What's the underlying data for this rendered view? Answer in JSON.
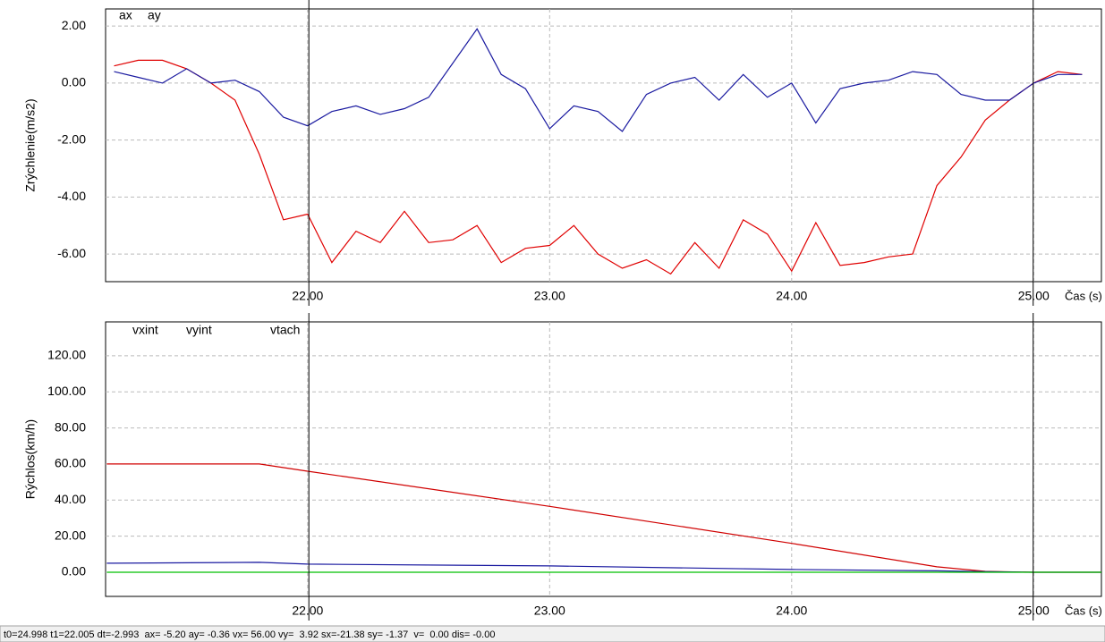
{
  "chart_data": [
    {
      "type": "line",
      "ylabel": "Zrýchlenie(m/s2)",
      "xlabel": "Čas (s)",
      "x": [
        21.2,
        21.3,
        21.4,
        21.5,
        21.6,
        21.7,
        21.8,
        21.9,
        22.0,
        22.1,
        22.2,
        22.3,
        22.4,
        22.5,
        22.6,
        22.7,
        22.8,
        22.9,
        23.0,
        23.1,
        23.2,
        23.3,
        23.4,
        23.5,
        23.6,
        23.7,
        23.8,
        23.9,
        24.0,
        24.1,
        24.2,
        24.3,
        24.4,
        24.5,
        24.6,
        24.7,
        24.8,
        24.9,
        25.0,
        25.1,
        25.2
      ],
      "series": [
        {
          "name": "ax",
          "color": "#e00000",
          "values": [
            0.6,
            0.8,
            0.8,
            0.5,
            0.0,
            -0.6,
            -2.5,
            -4.8,
            -4.6,
            -6.3,
            -5.2,
            -5.6,
            -4.5,
            -5.6,
            -5.5,
            -5.0,
            -6.3,
            -5.8,
            -5.7,
            -5.0,
            -6.0,
            -6.5,
            -6.2,
            -6.7,
            -5.6,
            -6.5,
            -4.8,
            -5.3,
            -6.6,
            -4.9,
            -6.4,
            -6.3,
            -6.1,
            -6.0,
            -3.6,
            -2.6,
            -1.3,
            -0.6,
            0.0,
            0.4,
            0.3
          ]
        },
        {
          "name": "ay",
          "color": "#1a1aa0",
          "values": [
            0.4,
            0.2,
            0.0,
            0.5,
            0.0,
            0.1,
            -0.3,
            -1.2,
            -1.5,
            -1.0,
            -0.8,
            -1.1,
            -0.9,
            -0.5,
            0.7,
            1.9,
            0.3,
            -0.2,
            -1.6,
            -0.8,
            -1.0,
            -1.7,
            -0.4,
            0.0,
            0.2,
            -0.6,
            0.3,
            -0.5,
            0.0,
            -1.4,
            -0.2,
            0.0,
            0.1,
            0.4,
            0.3,
            -0.4,
            -0.6,
            -0.6,
            0.0,
            0.3,
            0.3
          ]
        }
      ],
      "xlim": [
        21.165,
        25.28
      ],
      "ylim": [
        -6.97,
        2.6
      ],
      "xticks": [
        {
          "value": 22,
          "label": "22.00"
        },
        {
          "value": 23,
          "label": "23.00"
        },
        {
          "value": 24,
          "label": "24.00"
        },
        {
          "value": 25,
          "label": "25.00"
        }
      ],
      "yticks": [
        {
          "value": 2,
          "label": "2.00"
        },
        {
          "value": 0,
          "label": "0.00"
        },
        {
          "value": -2,
          "label": "-2.00"
        },
        {
          "value": -4,
          "label": "-4.00"
        },
        {
          "value": -6,
          "label": "-6.00"
        }
      ],
      "cursors": [
        22.005,
        24.998
      ],
      "grid": true
    },
    {
      "type": "line",
      "ylabel": "Rýchlos(km/h)",
      "xlabel": "Čas (s)",
      "x": [
        21.17,
        21.8,
        22.0,
        23.0,
        24.0,
        24.6,
        24.8,
        25.0,
        25.28
      ],
      "series": [
        {
          "name": "vxint",
          "color": "#d00000",
          "values": [
            60,
            60,
            56,
            36.5,
            16,
            3,
            0.5,
            0,
            0
          ]
        },
        {
          "name": "vyint",
          "color": "#1a1aa0",
          "values": [
            5,
            5.5,
            4.5,
            3.5,
            1.5,
            0.8,
            0.3,
            0,
            0
          ]
        },
        {
          "name": "vtach",
          "color": "#00c000",
          "values": [
            0,
            0,
            0,
            0,
            0,
            0,
            0,
            0,
            0
          ]
        }
      ],
      "xlim": [
        21.165,
        25.28
      ],
      "ylim": [
        -13.4,
        138.8
      ],
      "xticks": [
        {
          "value": 22,
          "label": "22.00"
        },
        {
          "value": 23,
          "label": "23.00"
        },
        {
          "value": 24,
          "label": "24.00"
        },
        {
          "value": 25,
          "label": "25.00"
        }
      ],
      "yticks": [
        {
          "value": 120,
          "label": "120.00"
        },
        {
          "value": 100,
          "label": "100.00"
        },
        {
          "value": 80,
          "label": "80.00"
        },
        {
          "value": 60,
          "label": "60.00"
        },
        {
          "value": 40,
          "label": "40.00"
        },
        {
          "value": 20,
          "label": "20.00"
        },
        {
          "value": 0,
          "label": "0.00"
        }
      ],
      "cursors": [
        22.005,
        24.998
      ],
      "grid": true
    }
  ],
  "status_bar": "t0=24.998 t1=22.005 dt=-2.993  ax= -5.20 ay= -0.36 vx= 56.00 vy=  3.92 sx=-21.38 sy= -1.37  v=  0.00 dis= -0.00"
}
